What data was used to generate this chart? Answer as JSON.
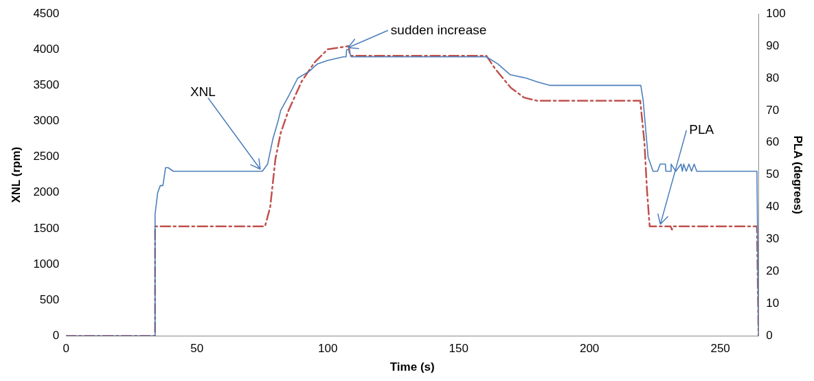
{
  "chart_data": {
    "type": "line",
    "xlabel": "Time (s)",
    "ylabel": "XNL (rpm)",
    "y2label": "PLA (degrees)",
    "xlim": [
      0,
      264.6
    ],
    "xticks": [
      0,
      50,
      100,
      150,
      200,
      250
    ],
    "ylim": [
      0,
      4500
    ],
    "yticks": [
      0,
      500,
      1000,
      1500,
      2000,
      2500,
      3000,
      3500,
      4000,
      4500
    ],
    "y2lim": [
      0,
      100
    ],
    "y2ticks": [
      0,
      10,
      20,
      30,
      40,
      50,
      60,
      70,
      80,
      90,
      100
    ],
    "grid": false,
    "legend": false,
    "marker": "none",
    "series": [
      {
        "color": "#4a7ebb",
        "line_style": "solid",
        "axis": "y",
        "x": [
          0,
          34,
          34,
          35,
          36,
          37,
          38,
          39,
          41,
          75,
          77,
          79,
          81,
          82,
          85,
          88.5,
          93,
          96,
          100,
          106,
          107,
          107.2,
          108,
          109,
          110,
          160.6,
          165,
          169.7,
          176,
          180,
          185,
          219.6,
          220.5,
          222.4,
          224.3,
          225,
          226,
          227,
          229,
          229.2,
          231,
          231.2,
          233,
          235,
          235.5,
          236,
          237,
          238,
          239,
          240,
          241,
          264,
          264.6
        ],
        "values": [
          0,
          0,
          1700,
          2000,
          2100,
          2100,
          2350,
          2350,
          2300,
          2300,
          2400,
          2750,
          3000,
          3150,
          3350,
          3600,
          3700,
          3800,
          3850,
          3900,
          3900,
          4000,
          4000,
          3900,
          3900,
          3900,
          3800,
          3650,
          3600,
          3550,
          3500,
          3500,
          3300,
          2500,
          2300,
          2300,
          2300,
          2400,
          2400,
          2300,
          2300,
          2400,
          2300,
          2400,
          2300,
          2400,
          2300,
          2400,
          2300,
          2400,
          2300,
          2300,
          0
        ]
      },
      {
        "color": "#c0504d",
        "line_style": "dashed",
        "axis": "y2",
        "x": [
          0,
          34,
          34,
          76,
          78,
          80,
          82,
          85,
          90,
          95,
          100,
          108,
          108.5,
          109,
          160.6,
          163.9,
          170,
          175,
          180,
          219.4,
          221,
          222,
          223,
          231,
          231.5,
          232,
          264,
          264.6
        ],
        "values": [
          0,
          0,
          34,
          34,
          40,
          55,
          63,
          70,
          79,
          85,
          89,
          90,
          87,
          87,
          87,
          83,
          77,
          74,
          73,
          73,
          60,
          45,
          34,
          34,
          33,
          34,
          34,
          0
        ]
      }
    ],
    "annotations": [
      {
        "text": "XNL",
        "x": 75,
        "y": 2300
      },
      {
        "text": "sudden increase",
        "x": 107,
        "y": 4000
      },
      {
        "text": "PLA",
        "x": 226.3,
        "y": 1530
      }
    ]
  }
}
